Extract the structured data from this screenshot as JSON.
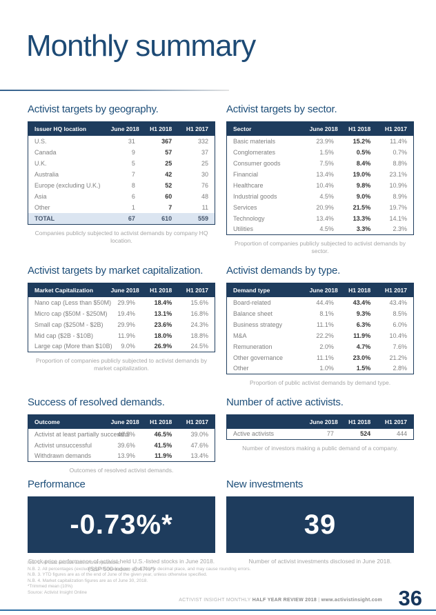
{
  "page_title": "Monthly summary",
  "col_headers": [
    "June 2018",
    "H1 2018",
    "H1 2017"
  ],
  "sections": {
    "geography": {
      "heading": "Activist targets by geography.",
      "label_header": "Issuer HQ location",
      "rows": [
        {
          "label": "U.S.",
          "values": [
            "31",
            "367",
            "332"
          ]
        },
        {
          "label": "Canada",
          "values": [
            "9",
            "57",
            "37"
          ]
        },
        {
          "label": "U.K.",
          "values": [
            "5",
            "25",
            "25"
          ]
        },
        {
          "label": "Australia",
          "values": [
            "7",
            "42",
            "30"
          ]
        },
        {
          "label": "Europe (excluding U.K.)",
          "values": [
            "8",
            "52",
            "76"
          ]
        },
        {
          "label": "Asia",
          "values": [
            "6",
            "60",
            "48"
          ]
        },
        {
          "label": "Other",
          "values": [
            "1",
            "7",
            "11"
          ]
        }
      ],
      "total_row": {
        "label": "TOTAL",
        "values": [
          "67",
          "610",
          "559"
        ]
      },
      "caption": "Companies publicly subjected to activist demands by company HQ location."
    },
    "sector": {
      "heading": "Activist targets by sector.",
      "label_header": "Sector",
      "rows": [
        {
          "label": "Basic materials",
          "values": [
            "23.9%",
            "15.2%",
            "11.4%"
          ]
        },
        {
          "label": "Conglomerates",
          "values": [
            "1.5%",
            "0.5%",
            "0.7%"
          ]
        },
        {
          "label": "Consumer goods",
          "values": [
            "7.5%",
            "8.4%",
            "8.8%"
          ]
        },
        {
          "label": "Financial",
          "values": [
            "13.4%",
            "19.0%",
            "23.1%"
          ]
        },
        {
          "label": "Healthcare",
          "values": [
            "10.4%",
            "9.8%",
            "10.9%"
          ]
        },
        {
          "label": "Industrial goods",
          "values": [
            "4.5%",
            "9.0%",
            "8.9%"
          ]
        },
        {
          "label": "Services",
          "values": [
            "20.9%",
            "21.5%",
            "19.7%"
          ]
        },
        {
          "label": "Technology",
          "values": [
            "13.4%",
            "13.3%",
            "14.1%"
          ]
        },
        {
          "label": "Utilities",
          "values": [
            "4.5%",
            "3.3%",
            "2.3%"
          ]
        }
      ],
      "caption": "Proportion of companies publicly subjected to activist demands by sector."
    },
    "market_cap": {
      "heading": "Activist targets by market capitalization.",
      "label_header": "Market Capitalization",
      "rows": [
        {
          "label": "Nano cap (Less than $50M)",
          "values": [
            "29.9%",
            "18.4%",
            "15.6%"
          ]
        },
        {
          "label": "Micro cap ($50M - $250M)",
          "values": [
            "19.4%",
            "13.1%",
            "16.8%"
          ]
        },
        {
          "label": "Small cap ($250M - $2B)",
          "values": [
            "29.9%",
            "23.6%",
            "24.3%"
          ]
        },
        {
          "label": "Mid cap ($2B - $10B)",
          "values": [
            "11.9%",
            "18.0%",
            "18.8%"
          ]
        },
        {
          "label": "Large cap (More than $10B)",
          "values": [
            "9.0%",
            "26.9%",
            "24.5%"
          ]
        }
      ],
      "caption": "Proportion of companies publicly subjected to activist demands by market capitalization."
    },
    "demands": {
      "heading": "Activist demands by type.",
      "label_header": "Demand type",
      "rows": [
        {
          "label": "Board-related",
          "values": [
            "44.4%",
            "43.4%",
            "43.4%"
          ]
        },
        {
          "label": "Balance sheet",
          "values": [
            "8.1%",
            "9.3%",
            "8.5%"
          ]
        },
        {
          "label": "Business strategy",
          "values": [
            "11.1%",
            "6.3%",
            "6.0%"
          ]
        },
        {
          "label": "M&A",
          "values": [
            "22.2%",
            "11.9%",
            "10.4%"
          ]
        },
        {
          "label": "Remuneration",
          "values": [
            "2.0%",
            "4.7%",
            "7.6%"
          ]
        },
        {
          "label": "Other governance",
          "values": [
            "11.1%",
            "23.0%",
            "21.2%"
          ]
        },
        {
          "label": "Other",
          "values": [
            "1.0%",
            "1.5%",
            "2.8%"
          ]
        }
      ],
      "caption": "Proportion of public activist demands by demand type."
    },
    "success": {
      "heading": "Success of resolved demands.",
      "label_header": "Outcome",
      "rows": [
        {
          "label": "Activist at least partially successful",
          "values": [
            "46.5%",
            "46.5%",
            "39.0%"
          ]
        },
        {
          "label": "Activist unsuccessful",
          "values": [
            "39.6%",
            "41.5%",
            "47.6%"
          ]
        },
        {
          "label": "Withdrawn demands",
          "values": [
            "13.9%",
            "11.9%",
            "13.4%"
          ]
        }
      ],
      "caption": "Outcomes of resolved activist demands."
    },
    "activists": {
      "heading": "Number of active activists.",
      "label_header": "",
      "rows": [
        {
          "label": "Active activists",
          "values": [
            "77",
            "524",
            "444"
          ]
        }
      ],
      "caption": "Number of investors making a public demand of a company."
    },
    "performance": {
      "heading": "Performance",
      "value": "-0.73%*",
      "caption_line1": "Stock price performance of activist-held U.S.-listed stocks in June 2018.",
      "caption_line2": "(S&P 500 index: -0.47%*)"
    },
    "new_investments": {
      "heading": "New investments",
      "value": "39",
      "caption": "Number of activist investments disclosed in June 2018."
    }
  },
  "footnotes": [
    "N.B. 1. All data exclude activist short positions.",
    "N.B. 2. All percentages (excluding performance) are given to one decimal place, and may cause rounding errors.",
    "N.B. 3. YTD figures are as of the end of June of the given year, unless otherwise specified.",
    "N.B. 4. Market capitalization figures are as of June 30, 2018.",
    "*Trimmed mean (10%)",
    "Source: Activist Insight Online"
  ],
  "footer": {
    "brand": "ACTIVIST INSIGHT MONTHLY ",
    "review": "HALF YEAR REVIEW 2018",
    "divider": " | ",
    "website": "www.activistinsight.com",
    "page_number": "36"
  }
}
